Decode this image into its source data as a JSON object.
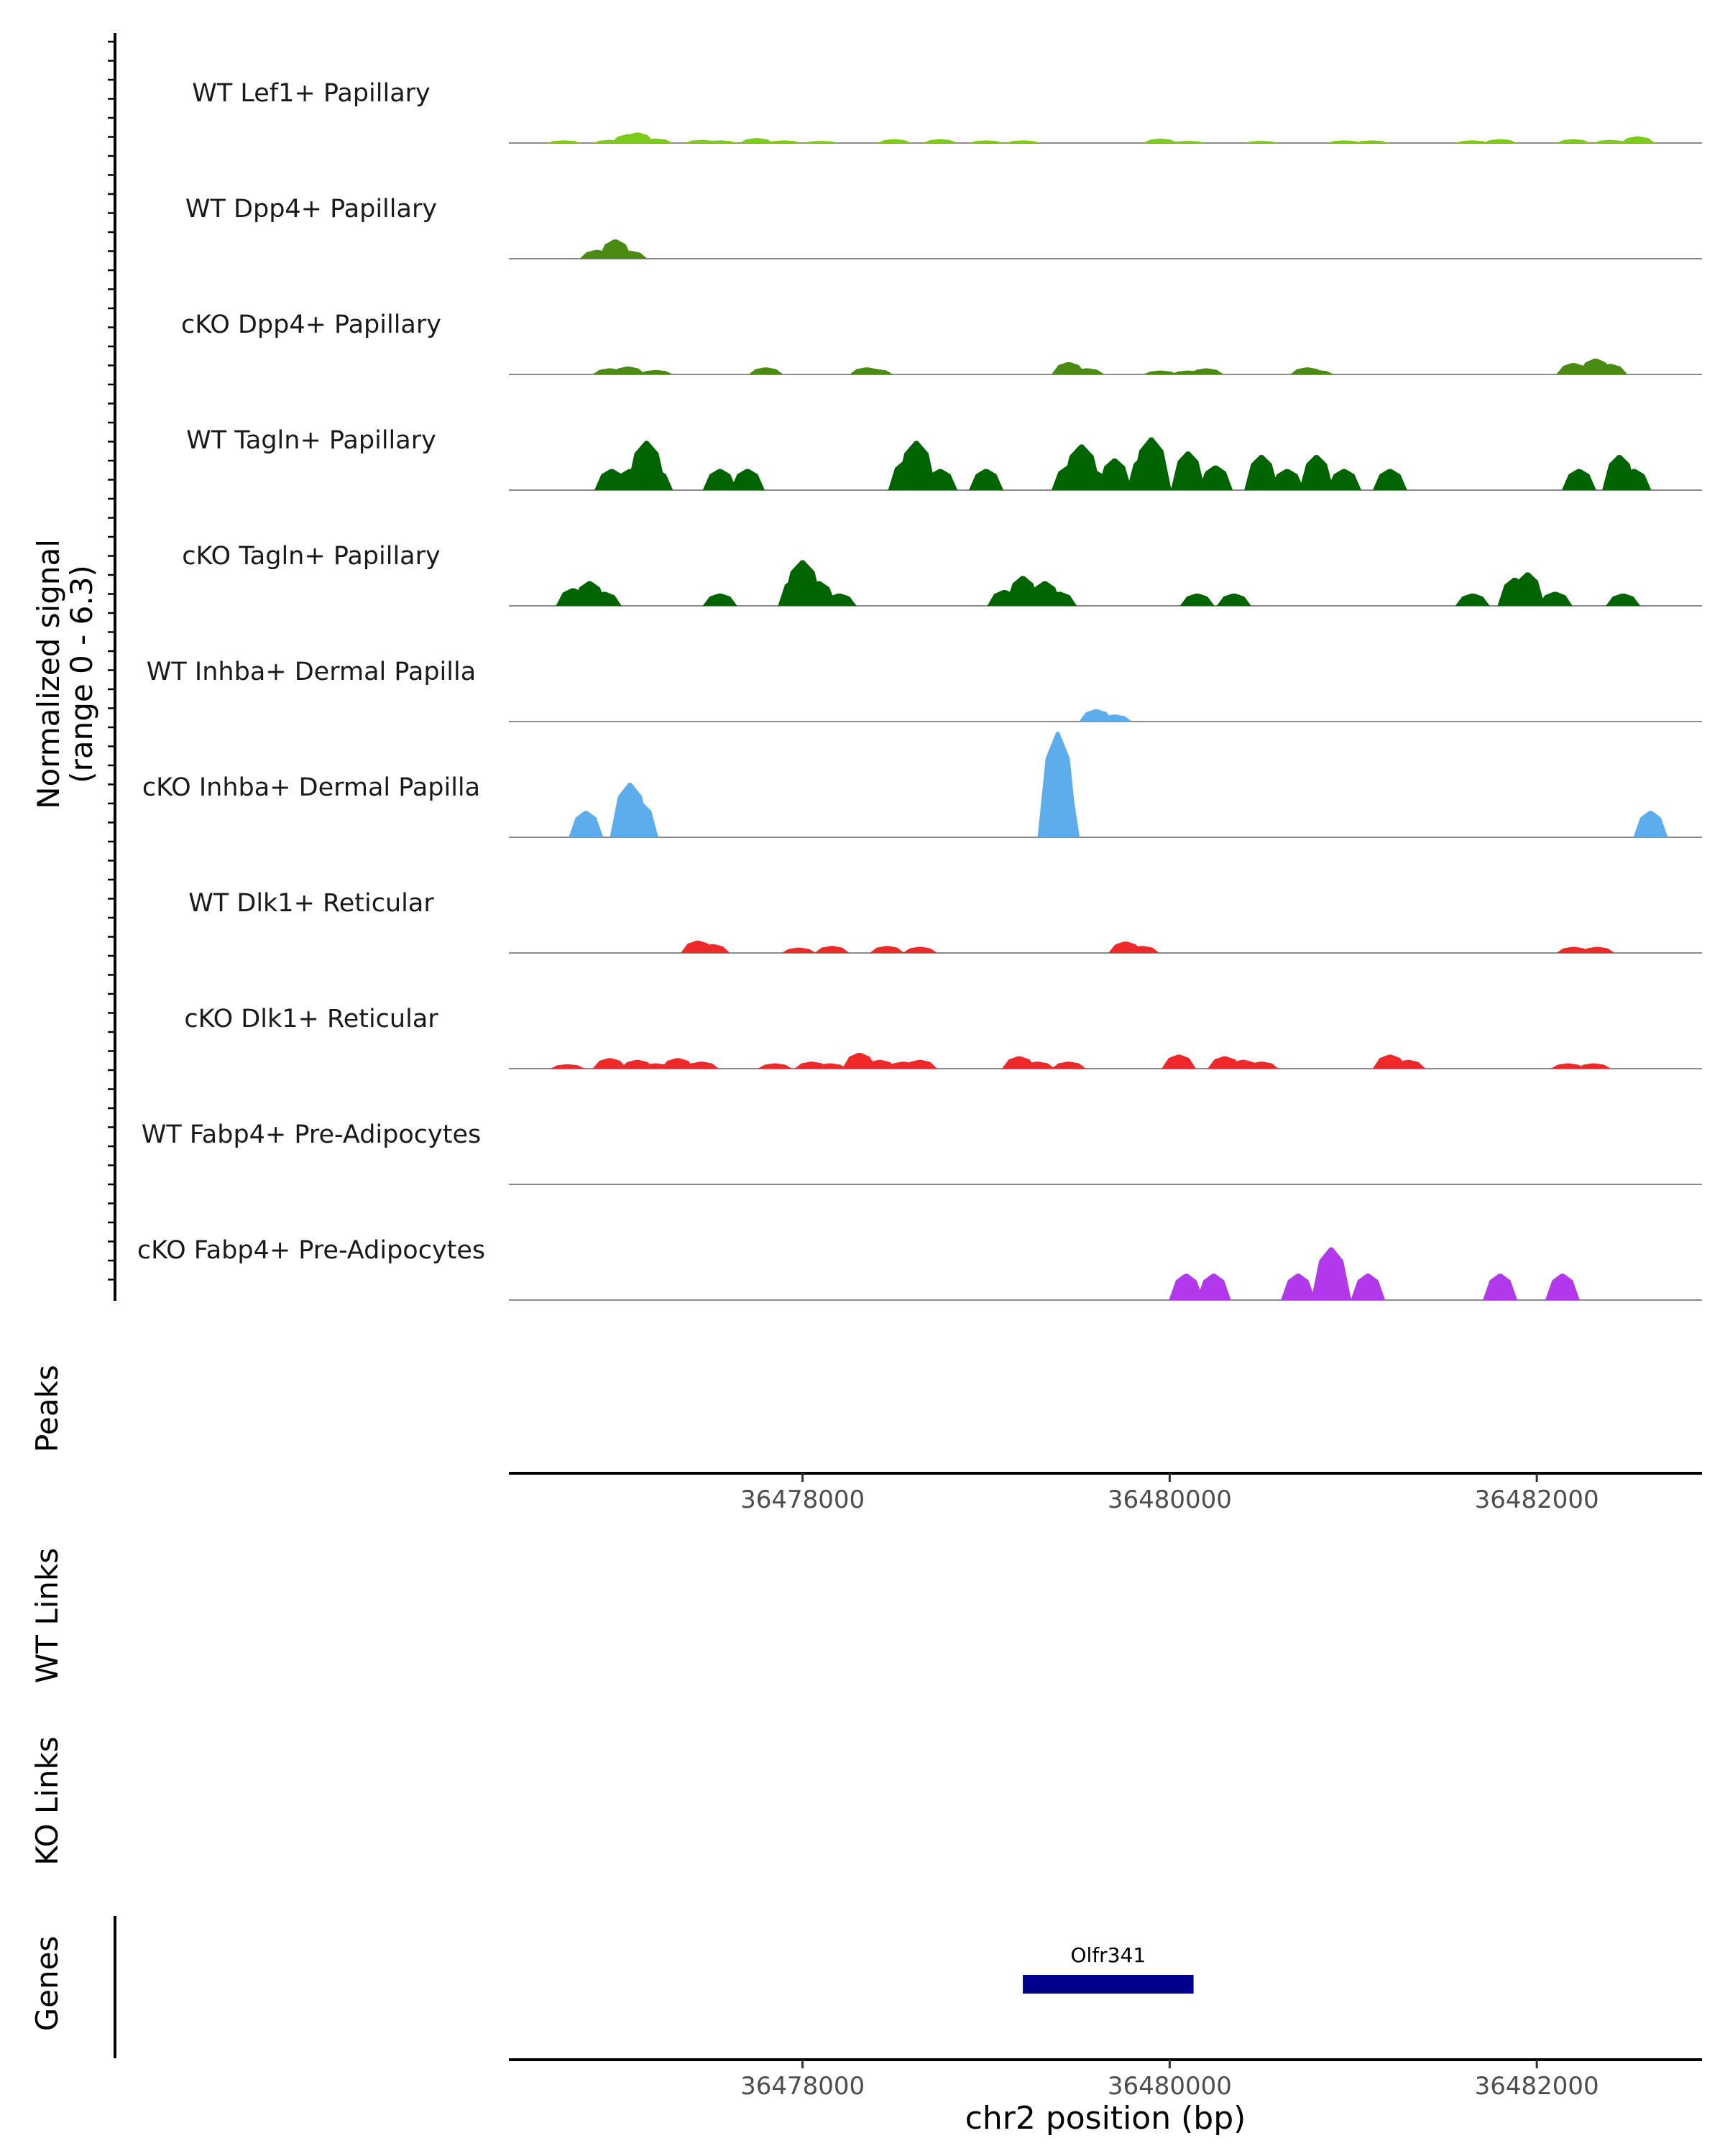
{
  "chart_data": {
    "type": "area",
    "title": "",
    "region": {
      "chrom": "chr2",
      "start": 36476400,
      "end": 36482900
    },
    "signal_axis": {
      "label_line1": "Normalized signal",
      "label_line2": "(range 0 - 6.3)",
      "ylim": [
        0,
        6.3
      ]
    },
    "series": [
      {
        "name": "WT Lef1+ Papillary",
        "color": "#7CCD17",
        "peaks": [
          [
            36476700,
            0.15
          ],
          [
            36476950,
            0.18
          ],
          [
            36477050,
            0.5
          ],
          [
            36477100,
            0.6
          ],
          [
            36477200,
            0.25
          ],
          [
            36477450,
            0.18
          ],
          [
            36477550,
            0.15
          ],
          [
            36477750,
            0.28
          ],
          [
            36477900,
            0.15
          ],
          [
            36478100,
            0.12
          ],
          [
            36478500,
            0.22
          ],
          [
            36478750,
            0.22
          ],
          [
            36479000,
            0.15
          ],
          [
            36479200,
            0.15
          ],
          [
            36479950,
            0.25
          ],
          [
            36480100,
            0.12
          ],
          [
            36480500,
            0.12
          ],
          [
            36480950,
            0.15
          ],
          [
            36481100,
            0.15
          ],
          [
            36481650,
            0.15
          ],
          [
            36481800,
            0.22
          ],
          [
            36482200,
            0.22
          ],
          [
            36482400,
            0.18
          ],
          [
            36482550,
            0.38
          ]
        ]
      },
      {
        "name": "WT Dpp4+ Papillary",
        "color": "#4A8B13",
        "peaks": [
          [
            36476880,
            0.5
          ],
          [
            36476980,
            1.1
          ],
          [
            36477060,
            0.45
          ]
        ]
      },
      {
        "name": "cKO Dpp4+ Papillary",
        "color": "#4A8B13",
        "peaks": [
          [
            36476950,
            0.35
          ],
          [
            36477050,
            0.45
          ],
          [
            36477200,
            0.25
          ],
          [
            36477800,
            0.4
          ],
          [
            36478350,
            0.4
          ],
          [
            36478400,
            0.3
          ],
          [
            36479450,
            0.7
          ],
          [
            36479550,
            0.35
          ],
          [
            36479950,
            0.22
          ],
          [
            36480100,
            0.22
          ],
          [
            36480200,
            0.35
          ],
          [
            36480750,
            0.4
          ],
          [
            36480800,
            0.25
          ],
          [
            36482200,
            0.65
          ],
          [
            36482320,
            0.9
          ],
          [
            36482400,
            0.6
          ]
        ]
      },
      {
        "name": "WT Tagln+ Papillary",
        "color": "#006400",
        "peaks": [
          [
            36476960,
            1.2
          ],
          [
            36477060,
            1.2
          ],
          [
            36477150,
            2.8
          ],
          [
            36477200,
            1.2
          ],
          [
            36477550,
            1.2
          ],
          [
            36477700,
            1.2
          ],
          [
            36478560,
            1.7
          ],
          [
            36478620,
            2.8
          ],
          [
            36478750,
            1.2
          ],
          [
            36479000,
            1.2
          ],
          [
            36479450,
            1.4
          ],
          [
            36479520,
            2.6
          ],
          [
            36479580,
            1.2
          ],
          [
            36479700,
            1.8
          ],
          [
            36479860,
            2.0
          ],
          [
            36479900,
            3.0
          ],
          [
            36480100,
            2.2
          ],
          [
            36480250,
            1.4
          ],
          [
            36480500,
            2.0
          ],
          [
            36480640,
            1.2
          ],
          [
            36480800,
            2.0
          ],
          [
            36480950,
            1.2
          ],
          [
            36481200,
            1.2
          ],
          [
            36482230,
            1.2
          ],
          [
            36482450,
            2.0
          ],
          [
            36482530,
            1.2
          ]
        ]
      },
      {
        "name": "cKO Tagln+ Papillary",
        "color": "#006400",
        "peaks": [
          [
            36476750,
            1.0
          ],
          [
            36476840,
            1.4
          ],
          [
            36476920,
            0.8
          ],
          [
            36477550,
            0.7
          ],
          [
            36477960,
            1.6
          ],
          [
            36478000,
            2.6
          ],
          [
            36478090,
            1.4
          ],
          [
            36478200,
            0.7
          ],
          [
            36479100,
            0.9
          ],
          [
            36479200,
            1.7
          ],
          [
            36479320,
            1.4
          ],
          [
            36479400,
            0.8
          ],
          [
            36480150,
            0.7
          ],
          [
            36480350,
            0.7
          ],
          [
            36481650,
            0.7
          ],
          [
            36481880,
            1.6
          ],
          [
            36481950,
            1.9
          ],
          [
            36482100,
            0.8
          ],
          [
            36482470,
            0.7
          ]
        ]
      },
      {
        "name": "WT Inhba+ Dermal Papilla",
        "color": "#5DADEC",
        "peaks": [
          [
            36479600,
            0.7
          ],
          [
            36479700,
            0.4
          ]
        ]
      },
      {
        "name": "cKO Inhba+ Dermal Papilla",
        "color": "#5DADEC",
        "peaks": [
          [
            36476820,
            1.5
          ],
          [
            36477060,
            3.1
          ],
          [
            36477120,
            2.0
          ],
          [
            36479390,
            6.0
          ],
          [
            36479400,
            4.0
          ],
          [
            36482620,
            1.5
          ]
        ]
      },
      {
        "name": "WT Dlk1+ Reticular",
        "color": "#F0282A",
        "peaks": [
          [
            36477430,
            0.7
          ],
          [
            36477510,
            0.5
          ],
          [
            36477980,
            0.3
          ],
          [
            36478160,
            0.4
          ],
          [
            36478460,
            0.4
          ],
          [
            36478640,
            0.35
          ],
          [
            36479760,
            0.65
          ],
          [
            36479850,
            0.4
          ],
          [
            36482200,
            0.35
          ],
          [
            36482330,
            0.35
          ]
        ]
      },
      {
        "name": "cKO Dlk1+ Reticular",
        "color": "#F0282A",
        "peaks": [
          [
            36476720,
            0.25
          ],
          [
            36476950,
            0.6
          ],
          [
            36477100,
            0.5
          ],
          [
            36477200,
            0.3
          ],
          [
            36477320,
            0.6
          ],
          [
            36477450,
            0.4
          ],
          [
            36477850,
            0.3
          ],
          [
            36478050,
            0.4
          ],
          [
            36478150,
            0.3
          ],
          [
            36478310,
            0.9
          ],
          [
            36478420,
            0.5
          ],
          [
            36478550,
            0.4
          ],
          [
            36478640,
            0.5
          ],
          [
            36479180,
            0.7
          ],
          [
            36479280,
            0.4
          ],
          [
            36479450,
            0.4
          ],
          [
            36480050,
            0.8
          ],
          [
            36480300,
            0.7
          ],
          [
            36480400,
            0.5
          ],
          [
            36480500,
            0.4
          ],
          [
            36481200,
            0.8
          ],
          [
            36481300,
            0.5
          ],
          [
            36482170,
            0.3
          ],
          [
            36482310,
            0.3
          ]
        ]
      },
      {
        "name": "WT Fabp4+ Pre-Adipocytes",
        "color": "#B238EC",
        "peaks": []
      },
      {
        "name": "cKO Fabp4+ Pre-Adipocytes",
        "color": "#B238EC",
        "peaks": [
          [
            36480090,
            1.5
          ],
          [
            36480240,
            1.5
          ],
          [
            36480700,
            1.5
          ],
          [
            36480880,
            3.0
          ],
          [
            36481080,
            1.5
          ],
          [
            36481800,
            1.5
          ],
          [
            36482140,
            1.5
          ]
        ]
      }
    ],
    "tracks": {
      "peaks": "Peaks",
      "wt_links": "WT Links",
      "ko_links": "KO Links",
      "genes": "Genes"
    },
    "x_axis": {
      "ticks": [
        36478000,
        36480000,
        36482000
      ],
      "tick_labels": [
        "36478000",
        "36480000",
        "36482000"
      ],
      "xlabel": "chr2 position (bp)"
    },
    "genes": [
      {
        "name": "Olfr341",
        "start": 36479200,
        "end": 36480130,
        "color": "#00008B"
      }
    ]
  }
}
